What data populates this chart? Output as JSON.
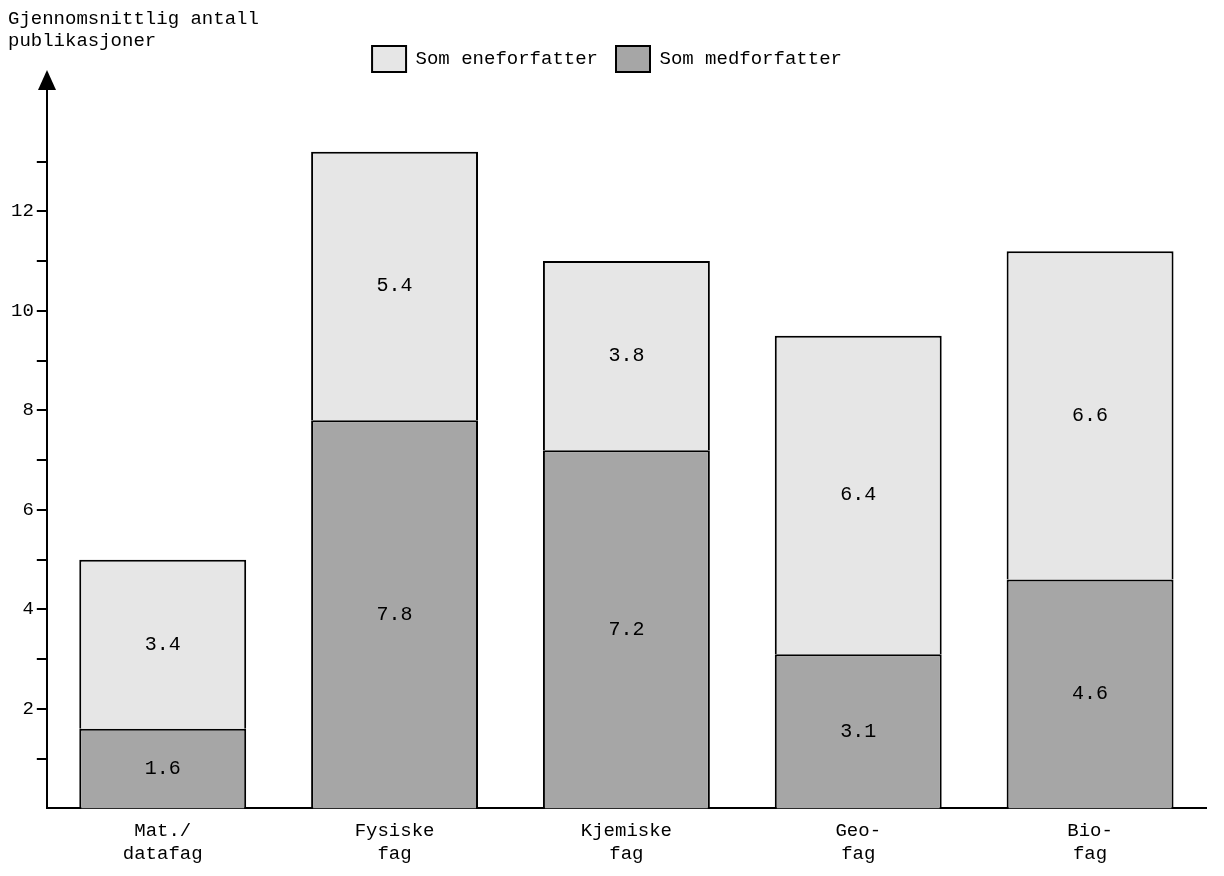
{
  "chart_data": {
    "type": "bar",
    "stacked": true,
    "ylabel": "Gjennomsnittlig antall publikasjoner",
    "categories": [
      "Mat./ datafag",
      "Fysiske fag",
      "Kjemiske fag",
      "Geo- fag",
      "Bio- fag"
    ],
    "series": [
      {
        "name": "Som medforfatter",
        "color": "#a6a6a6",
        "values": [
          1.6,
          7.8,
          7.2,
          3.1,
          4.6
        ]
      },
      {
        "name": "Som eneforfatter",
        "color": "#e6e6e6",
        "values": [
          3.4,
          5.4,
          3.8,
          6.4,
          6.6
        ]
      }
    ],
    "ylim": [
      0,
      14.6
    ],
    "yticks": [
      {
        "value": 1,
        "label": null
      },
      2,
      {
        "value": 3,
        "label": null
      },
      4,
      {
        "value": 5,
        "label": null
      },
      6,
      {
        "value": 7,
        "label": null
      },
      8,
      {
        "value": 9,
        "label": null
      },
      10,
      {
        "value": 11,
        "label": null
      },
      12,
      {
        "value": 13,
        "label": null
      }
    ],
    "grid": false,
    "legend": "top",
    "data_labels": true
  }
}
